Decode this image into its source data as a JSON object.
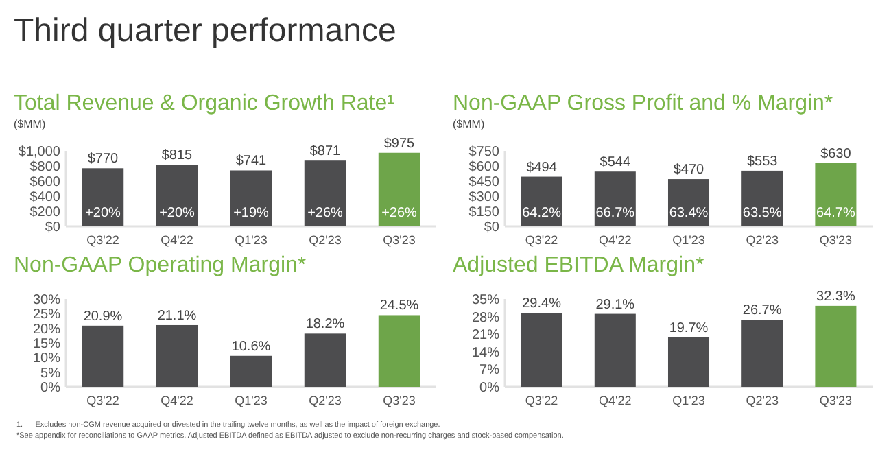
{
  "chart_data": [
    {
      "type": "bar",
      "title": "Total Revenue & Organic Growth Rate¹",
      "ylabel": "($MM)",
      "categories": [
        "Q3'22",
        "Q4'22",
        "Q1'23",
        "Q2'23",
        "Q3'23"
      ],
      "values": [
        770,
        815,
        741,
        871,
        975
      ],
      "colors": [
        "#4d4d4f",
        "#4d4d4f",
        "#4d4d4f",
        "#4d4d4f",
        "#6ea54a"
      ],
      "value_labels": [
        "$770",
        "$815",
        "$741",
        "$871",
        "$975"
      ],
      "ylim": [
        0,
        1000
      ],
      "yticks": [
        {
          "value": 0,
          "label": "$0"
        },
        {
          "value": 200,
          "label": "$200"
        },
        {
          "value": 400,
          "label": "$400"
        },
        {
          "value": 600,
          "label": "$600"
        },
        {
          "value": 800,
          "label": "$800"
        },
        {
          "value": 1000,
          "label": "$1,000"
        }
      ],
      "grid": false,
      "annotations": [
        "Third quarter performance",
        "+20%",
        "+20%",
        "+19%",
        "+26%",
        "+26%"
      ]
    },
    {
      "type": "bar",
      "title": "Non-GAAP Gross Profit and % Margin*",
      "ylabel": "($MM)",
      "categories": [
        "Q3'22",
        "Q4'22",
        "Q1'23",
        "Q2'23",
        "Q3'23"
      ],
      "values": [
        494,
        544,
        470,
        553,
        630
      ],
      "colors": [
        "#4d4d4f",
        "#4d4d4f",
        "#4d4d4f",
        "#4d4d4f",
        "#6ea54a"
      ],
      "value_labels": [
        "$494",
        "$544",
        "$470",
        "$553",
        "$630"
      ],
      "ylim": [
        0,
        750
      ],
      "yticks": [
        {
          "value": 0,
          "label": "$0"
        },
        {
          "value": 150,
          "label": "$150"
        },
        {
          "value": 300,
          "label": "$300"
        },
        {
          "value": 450,
          "label": "$450"
        },
        {
          "value": 600,
          "label": "$600"
        },
        {
          "value": 750,
          "label": "$750"
        }
      ],
      "grid": false,
      "annotations": [
        "64.2%",
        "66.7%",
        "63.4%",
        "63.5%",
        "64.7%"
      ]
    },
    {
      "type": "bar",
      "title": "Non-GAAP Operating Margin*",
      "categories": [
        "Q3'22",
        "Q4'22",
        "Q1'23",
        "Q2'23",
        "Q3'23"
      ],
      "values": [
        20.9,
        21.1,
        10.6,
        18.2,
        24.5
      ],
      "colors": [
        "#4d4d4f",
        "#4d4d4f",
        "#4d4d4f",
        "#4d4d4f",
        "#6ea54a"
      ],
      "value_labels": [
        "20.9%",
        "21.1%",
        "10.6%",
        "18.2%",
        "24.5%"
      ],
      "ylim": [
        0,
        30
      ],
      "yticks": [
        {
          "value": 0,
          "label": "0%"
        },
        {
          "value": 5,
          "label": "5%"
        },
        {
          "value": 10,
          "label": "10%"
        },
        {
          "value": 15,
          "label": "15%"
        },
        {
          "value": 20,
          "label": "20%"
        },
        {
          "value": 25,
          "label": "25%"
        },
        {
          "value": 30,
          "label": "30%"
        }
      ],
      "grid": false
    },
    {
      "type": "bar",
      "title": "Adjusted EBITDA Margin*",
      "categories": [
        "Q3'22",
        "Q4'22",
        "Q1'23",
        "Q2'23",
        "Q3'23"
      ],
      "values": [
        29.4,
        29.1,
        19.7,
        26.7,
        32.3
      ],
      "colors": [
        "#4d4d4f",
        "#4d4d4f",
        "#4d4d4f",
        "#4d4d4f",
        "#6ea54a"
      ],
      "value_labels": [
        "29.4%",
        "29.1%",
        "19.7%",
        "26.7%",
        "32.3%"
      ],
      "ylim": [
        0,
        35
      ],
      "yticks": [
        {
          "value": 0,
          "label": "0%"
        },
        {
          "value": 7,
          "label": "7%"
        },
        {
          "value": 14,
          "label": "14%"
        },
        {
          "value": 21,
          "label": "21%"
        },
        {
          "value": 28,
          "label": "28%"
        },
        {
          "value": 35,
          "label": "35%"
        }
      ],
      "grid": false,
      "annotations": [
        "1.      Excludes non-CGM revenue acquired or divested in the trailing twelve months, as well as the impact of foreign exchange.",
        "*See appendix for reconciliations to GAAP metrics. Adjusted EBITDA defined as EBITDA adjusted to exclude non-recurring charges and stock-based compensation."
      ]
    }
  ]
}
